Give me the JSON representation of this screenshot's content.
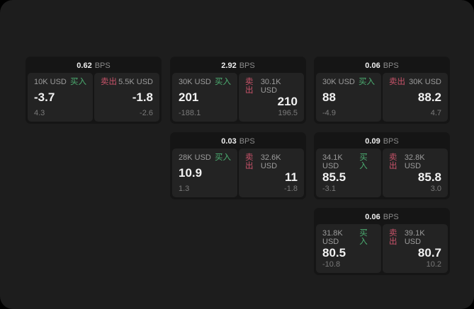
{
  "labels": {
    "bps": "BPS",
    "buy": "买入",
    "sell": "卖出"
  },
  "colors": {
    "background": "#1d1d1d",
    "card": "#151515",
    "panel": "#232323",
    "buy_green": "#4caf72",
    "sell_red": "#c9536a"
  },
  "cards": [
    {
      "bps": "0.62",
      "buy": {
        "notional": "10K USD",
        "price": "-3.7",
        "delta": "4.3"
      },
      "sell": {
        "notional": "5.5K USD",
        "price": "-1.8",
        "delta": "-2.6"
      }
    },
    {
      "bps": "2.92",
      "buy": {
        "notional": "30K USD",
        "price": "201",
        "delta": "-188.1"
      },
      "sell": {
        "notional": "30.1K USD",
        "price": "210",
        "delta": "196.5"
      }
    },
    {
      "bps": "0.06",
      "buy": {
        "notional": "30K USD",
        "price": "88",
        "delta": "-4.9"
      },
      "sell": {
        "notional": "30K USD",
        "price": "88.2",
        "delta": "4.7"
      }
    },
    {
      "bps": "0.03",
      "buy": {
        "notional": "28K USD",
        "price": "10.9",
        "delta": "1.3"
      },
      "sell": {
        "notional": "32.6K USD",
        "price": "11",
        "delta": "-1.8"
      }
    },
    {
      "bps": "0.09",
      "buy": {
        "notional": "34.1K USD",
        "price": "85.5",
        "delta": "-3.1"
      },
      "sell": {
        "notional": "32.8K USD",
        "price": "85.8",
        "delta": "3.0"
      }
    },
    {
      "bps": "0.06",
      "buy": {
        "notional": "31.8K USD",
        "price": "80.5",
        "delta": "-10.8"
      },
      "sell": {
        "notional": "39.1K USD",
        "price": "80.7",
        "delta": "10.2"
      }
    }
  ]
}
